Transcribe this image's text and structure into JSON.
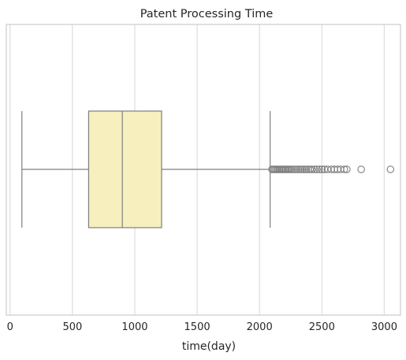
{
  "chart_data": {
    "type": "boxplot",
    "title": "Patent Processing Time",
    "xlabel": "time(day)",
    "ylabel": "",
    "orientation": "horizontal",
    "xlim": [
      -30,
      3130
    ],
    "xticks": [
      0,
      500,
      1000,
      1500,
      2000,
      2500,
      3000
    ],
    "xtick_labels": [
      "0",
      "500",
      "1000",
      "1500",
      "2000",
      "2500",
      "3000"
    ],
    "grid": true,
    "box": {
      "whisker_low": 95,
      "q1": 630,
      "median": 900,
      "q3": 1215,
      "whisker_high": 2085,
      "outliers": [
        2100,
        2110,
        2120,
        2130,
        2140,
        2150,
        2160,
        2170,
        2180,
        2190,
        2200,
        2210,
        2220,
        2230,
        2240,
        2255,
        2270,
        2285,
        2300,
        2315,
        2330,
        2345,
        2360,
        2375,
        2390,
        2405,
        2420,
        2440,
        2460,
        2480,
        2500,
        2520,
        2545,
        2575,
        2600,
        2625,
        2650,
        2680,
        2700,
        2815,
        3050
      ]
    },
    "colors": {
      "box_fill": "#f7efbe",
      "line": "#7f7f7f",
      "grid": "#dddddd",
      "frame": "#cccccc",
      "text": "#262626"
    }
  }
}
